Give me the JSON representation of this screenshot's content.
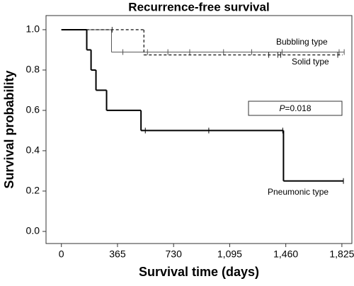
{
  "chart_data": {
    "type": "step",
    "title": "Recurrence-free survival",
    "x_label": "Survival time (days)",
    "y_label": "Survival probability",
    "annotation": {
      "symbol": "P",
      "text": "=0.018"
    },
    "xlim": [
      -100,
      1890
    ],
    "ylim": [
      -0.06,
      1.07
    ],
    "xticks": [
      0,
      365,
      730,
      {
        "value": 1095,
        "label": "1,095"
      },
      {
        "value": 1460,
        "label": "1,460"
      },
      {
        "value": 1825,
        "label": "1,825"
      }
    ],
    "yticks": [
      {
        "value": 0,
        "label": "0.0"
      },
      {
        "value": 0.2,
        "label": "0.2"
      },
      {
        "value": 0.4,
        "label": "0.4"
      },
      {
        "value": 0.6,
        "label": "0.6"
      },
      {
        "value": 0.8,
        "label": "0.8"
      },
      {
        "value": 1,
        "label": "1.0"
      }
    ],
    "series": [
      {
        "name": "Bubbling type",
        "color": "#555555",
        "dashed": false,
        "x": [
          0,
          326,
          1840
        ],
        "values": [
          1,
          0.889,
          0.889
        ],
        "censored_x": [
          400,
          560,
          693,
          835,
          1055,
          1238,
          1436,
          1807,
          1840
        ],
        "censored_values": [
          0.889,
          0.889,
          0.889,
          0.889,
          0.889,
          0.889,
          0.889,
          0.889,
          0.889
        ]
      },
      {
        "name": "Solid type",
        "color": "#222222",
        "dashed": true,
        "x": [
          0,
          537,
          1830
        ],
        "values": [
          1,
          0.875,
          0.875
        ],
        "censored_x": [
          330,
          1349,
          1408,
          1427,
          1798
        ],
        "censored_values": [
          1,
          0.875,
          0.875,
          0.875,
          0.875
        ]
      },
      {
        "name": "Pneumonic type",
        "color": "#000000",
        "dashed": false,
        "x": [
          0,
          165,
          193,
          225,
          294,
          518,
          1445,
          1835
        ],
        "values": [
          1,
          0.9,
          0.8,
          0.7,
          0.6,
          0.5,
          0.25,
          0.25
        ],
        "censored_x": [
          546,
          959,
          1440,
          1835
        ],
        "censored_values": [
          0.5,
          0.5,
          0.5,
          0.25
        ]
      }
    ]
  }
}
